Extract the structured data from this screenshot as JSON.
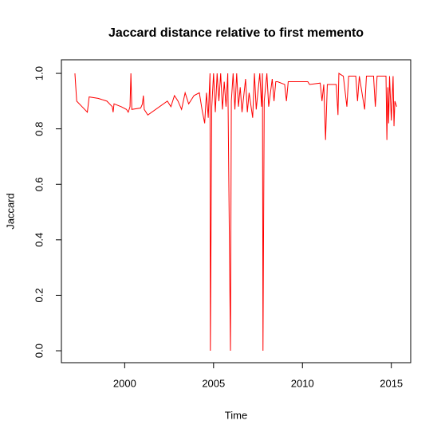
{
  "chart_data": {
    "type": "line",
    "title": "Jaccard distance relative to first memento",
    "xlabel": "Time",
    "ylabel": "Jaccard",
    "x": [
      1997.2,
      1997.3,
      1997.6,
      1997.9,
      1998.0,
      1998.5,
      1999.0,
      1999.3,
      1999.35,
      1999.4,
      1999.8,
      2000.1,
      2000.2,
      2000.3,
      2000.35,
      2000.4,
      2000.9,
      2001.0,
      2001.05,
      2001.1,
      2001.2,
      2001.3,
      2002.4,
      2002.6,
      2002.8,
      2003.0,
      2003.2,
      2003.4,
      2003.6,
      2003.9,
      2004.2,
      2004.35,
      2004.5,
      2004.6,
      2004.7,
      2004.8,
      2004.82,
      2004.9,
      2005.0,
      2005.1,
      2005.2,
      2005.3,
      2005.4,
      2005.5,
      2005.6,
      2005.7,
      2005.8,
      2005.95,
      2006.0,
      2006.1,
      2006.2,
      2006.3,
      2006.4,
      2006.5,
      2006.6,
      2006.8,
      2006.9,
      2007.0,
      2007.2,
      2007.3,
      2007.4,
      2007.6,
      2007.7,
      2007.75,
      2007.78,
      2007.85,
      2008.0,
      2008.1,
      2008.3,
      2008.4,
      2008.5,
      2008.6,
      2009.0,
      2009.1,
      2009.2,
      2010.3,
      2010.4,
      2011.0,
      2011.1,
      2011.2,
      2011.3,
      2011.4,
      2011.9,
      2012.0,
      2012.05,
      2012.3,
      2012.5,
      2012.6,
      2013.0,
      2013.1,
      2013.2,
      2013.5,
      2013.6,
      2014.0,
      2014.1,
      2014.2,
      2014.7,
      2014.75,
      2014.8,
      2014.85,
      2014.9,
      2015.0,
      2015.1,
      2015.15,
      2015.2,
      2015.3
    ],
    "series": [
      {
        "name": "Jaccard",
        "color": "#ff0000",
        "values": [
          1.0,
          0.9,
          0.88,
          0.86,
          0.915,
          0.91,
          0.9,
          0.88,
          0.86,
          0.89,
          0.88,
          0.87,
          0.86,
          0.88,
          1.0,
          0.87,
          0.875,
          0.89,
          0.92,
          0.87,
          0.86,
          0.85,
          0.9,
          0.88,
          0.92,
          0.9,
          0.87,
          0.93,
          0.89,
          0.92,
          0.93,
          0.87,
          0.82,
          0.93,
          0.84,
          1.0,
          0.0,
          0.88,
          1.0,
          0.86,
          1.0,
          0.9,
          1.0,
          0.87,
          0.97,
          0.88,
          1.0,
          0.0,
          0.9,
          1.0,
          0.87,
          1.0,
          0.88,
          0.95,
          0.86,
          0.98,
          0.86,
          0.93,
          0.84,
          1.0,
          0.87,
          1.0,
          0.88,
          1.0,
          0.0,
          0.9,
          1.0,
          0.88,
          0.98,
          0.9,
          0.97,
          0.97,
          0.96,
          0.9,
          0.97,
          0.97,
          0.96,
          0.965,
          0.9,
          0.96,
          0.76,
          0.96,
          0.96,
          0.85,
          1.0,
          0.99,
          0.88,
          0.99,
          0.99,
          0.9,
          0.99,
          0.87,
          0.99,
          0.99,
          0.88,
          0.99,
          0.99,
          0.76,
          0.95,
          0.82,
          0.99,
          0.83,
          0.99,
          0.81,
          0.9,
          0.88
        ]
      }
    ],
    "xlim": [
      1996.44,
      2016.09
    ],
    "ylim": [
      -0.043,
      1.049
    ],
    "xticks": [
      2000,
      2005,
      2010,
      2015
    ],
    "yticks": [
      {
        "value": 0,
        "label": "0.0"
      },
      {
        "value": 0.2,
        "label": "0.2"
      },
      {
        "value": 0.4,
        "label": "0.4"
      },
      {
        "value": 0.6,
        "label": "0.6"
      },
      {
        "value": 0.8,
        "label": "0.8"
      },
      {
        "value": 1,
        "label": "1.0"
      }
    ]
  }
}
